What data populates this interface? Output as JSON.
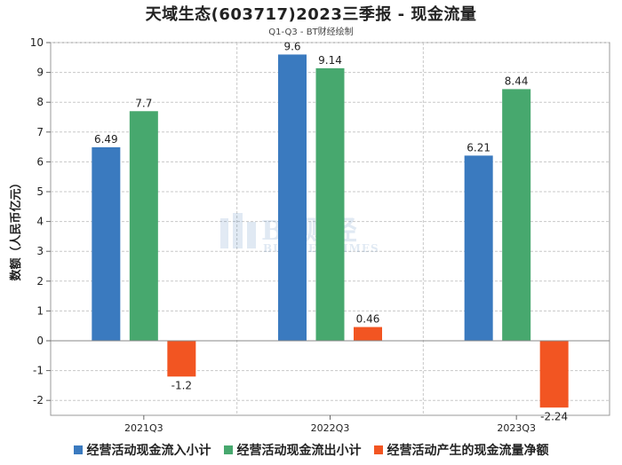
{
  "title": "天域生态(603717)2023三季报 - 现金流量",
  "subtitle": "Q1-Q3 - BT财经绘制",
  "watermark": {
    "main": "BT财经",
    "sub": "BUSINESSTIMES"
  },
  "chart_data": {
    "type": "bar",
    "title": "天域生态(603717)2023三季报 - 现金流量",
    "subtitle": "Q1-Q3 - BT财经绘制",
    "xlabel": "",
    "ylabel": "数额（人民币亿元）",
    "categories": [
      "2021Q3",
      "2022Q3",
      "2023Q3"
    ],
    "ylim": [
      -2.5,
      10
    ],
    "yticks": [
      -2,
      -1,
      0,
      1,
      2,
      3,
      4,
      5,
      6,
      7,
      8,
      9,
      10
    ],
    "grid": true,
    "legend_position": "bottom",
    "series": [
      {
        "name": "经营活动现金流入小计",
        "color": "#3a7abf",
        "values": [
          6.49,
          9.6,
          6.21
        ]
      },
      {
        "name": "经营活动现金流出小计",
        "color": "#47a86e",
        "values": [
          7.7,
          9.14,
          8.44
        ]
      },
      {
        "name": "经营活动产生的现金流量净额",
        "color": "#f25522",
        "values": [
          -1.2,
          0.46,
          -2.24
        ]
      }
    ]
  }
}
